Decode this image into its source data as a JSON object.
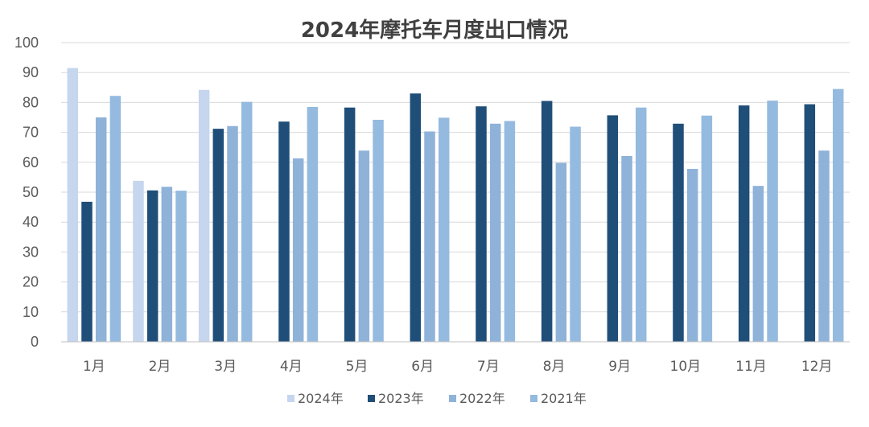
{
  "chart_data": {
    "type": "bar",
    "title": "2024年摩托车月度出口情况",
    "categories": [
      "1月",
      "2月",
      "3月",
      "4月",
      "5月",
      "6月",
      "7月",
      "8月",
      "9月",
      "10月",
      "11月",
      "12月"
    ],
    "ylim": [
      0,
      100
    ],
    "yticks": [
      0,
      10,
      20,
      30,
      40,
      50,
      60,
      70,
      80,
      90,
      100
    ],
    "grid": true,
    "legend_position": "bottom",
    "series": [
      {
        "name": "2024年",
        "color": "#c5d6ee",
        "values": [
          91.5,
          53.8,
          84.2,
          null,
          null,
          null,
          null,
          null,
          null,
          null,
          null,
          null
        ]
      },
      {
        "name": "2023年",
        "color": "#1f4e79",
        "values": [
          46.8,
          50.6,
          71.2,
          73.6,
          78.3,
          83.0,
          78.7,
          80.5,
          75.7,
          72.9,
          79.0,
          79.4
        ]
      },
      {
        "name": "2022年",
        "color": "#8fb2d9",
        "values": [
          75.0,
          51.8,
          72.1,
          61.3,
          63.9,
          70.3,
          72.9,
          59.8,
          62.1,
          57.8,
          52.1,
          63.9
        ]
      },
      {
        "name": "2021年",
        "color": "#95badf",
        "values": [
          82.2,
          50.5,
          80.2,
          78.5,
          74.2,
          74.9,
          73.8,
          71.9,
          78.3,
          75.6,
          80.6,
          84.5
        ]
      }
    ]
  }
}
